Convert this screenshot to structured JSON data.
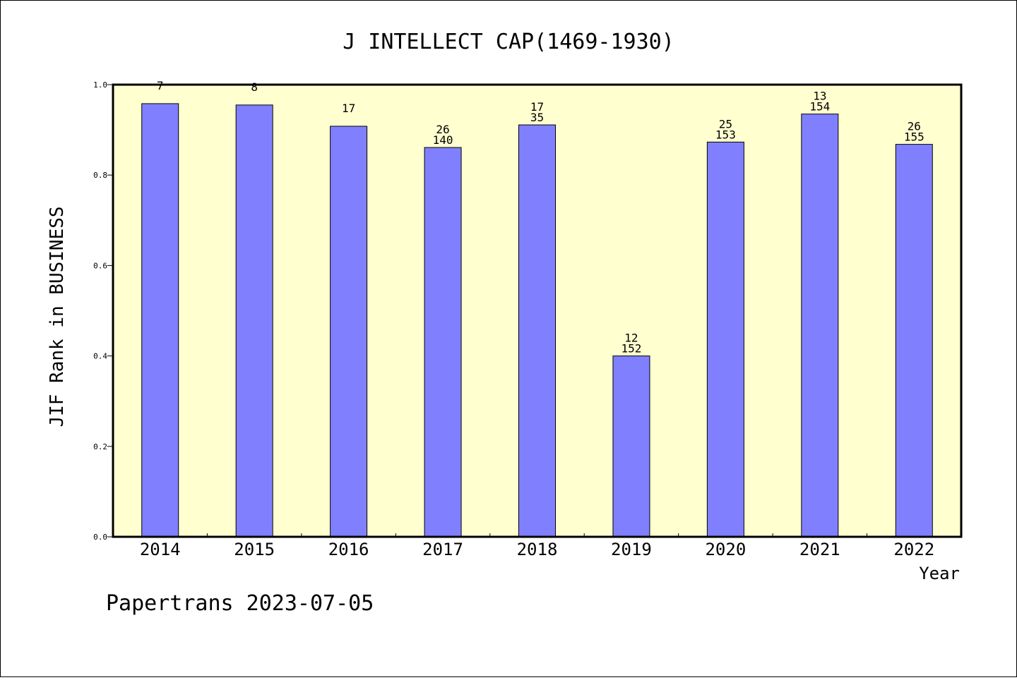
{
  "chart_data": {
    "type": "bar",
    "title": "J INTELLECT CAP(1469-1930)",
    "xlabel": "Year",
    "ylabel": "JIF Rank in BUSINESS",
    "ylim": [
      0,
      1.0
    ],
    "yticks": [
      "0.0",
      "0.2",
      "0.4",
      "0.6",
      "0.8",
      "1.0"
    ],
    "categories": [
      "2014",
      "2015",
      "2016",
      "2017",
      "2018",
      "2019",
      "2020",
      "2021",
      "2022"
    ],
    "values": [
      0.958,
      0.955,
      0.908,
      0.861,
      0.911,
      0.4,
      0.873,
      0.935,
      0.868
    ],
    "labels_top": [
      "7",
      "8",
      "17",
      "26",
      "17",
      "12",
      "25",
      "13",
      "26"
    ],
    "labels_bottom": [
      "",
      "",
      "",
      "140",
      "35",
      "152",
      "153",
      "154",
      "155"
    ],
    "grid": false,
    "colors": {
      "bar": "#8080ff",
      "plot_bg": "#ffffd0"
    }
  },
  "footer": "Papertrans 2023-07-05"
}
